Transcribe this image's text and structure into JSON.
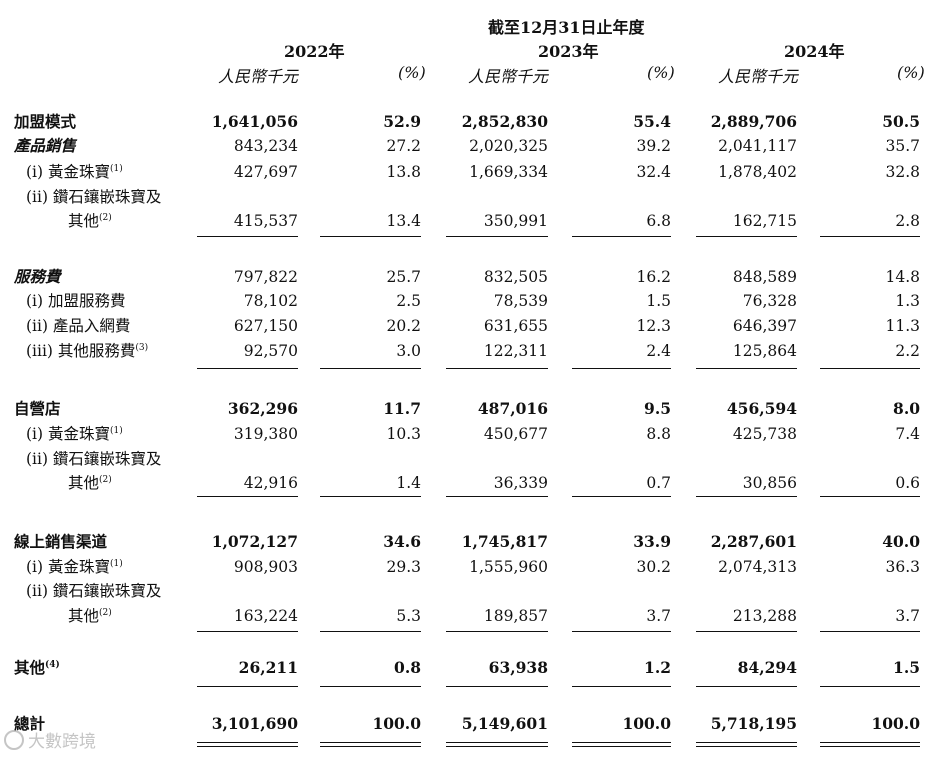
{
  "header": {
    "period": "截至12月31日止年度",
    "years": [
      "2022年",
      "2023年",
      "2024年"
    ],
    "unit_label": "人民幣千元",
    "pct_label": "(%)"
  },
  "rows": [
    {
      "label": "加盟模式",
      "bold": true,
      "italic": false,
      "sup": "",
      "vals": [
        "1,641,056",
        "52.9",
        "2,852,830",
        "55.4",
        "2,889,706",
        "50.5"
      ]
    },
    {
      "label": "產品銷售",
      "bold": true,
      "italic": true,
      "sup": "",
      "vals": [
        "843,234",
        "27.2",
        "2,020,325",
        "39.2",
        "2,041,117",
        "35.7"
      ]
    },
    {
      "label": "(i) 黃金珠寶",
      "bold": false,
      "italic": false,
      "sup": "(1)",
      "vals": [
        "427,697",
        "13.8",
        "1,669,334",
        "32.4",
        "1,878,402",
        "32.8"
      ]
    },
    {
      "label": "(ii) 鑽石鑲嵌珠寶及",
      "bold": false,
      "italic": false,
      "sup": "",
      "vals": [
        "",
        "",
        "",
        "",
        "",
        ""
      ]
    },
    {
      "label": "其他",
      "bold": false,
      "italic": false,
      "sup": "(2)",
      "vals": [
        "415,537",
        "13.4",
        "350,991",
        "6.8",
        "162,715",
        "2.8"
      ]
    },
    {
      "label": "服務費",
      "bold": true,
      "italic": true,
      "sup": "",
      "vals": [
        "797,822",
        "25.7",
        "832,505",
        "16.2",
        "848,589",
        "14.8"
      ]
    },
    {
      "label": "(i) 加盟服務費",
      "bold": false,
      "italic": false,
      "sup": "",
      "vals": [
        "78,102",
        "2.5",
        "78,539",
        "1.5",
        "76,328",
        "1.3"
      ]
    },
    {
      "label": "(ii) 產品入網費",
      "bold": false,
      "italic": false,
      "sup": "",
      "vals": [
        "627,150",
        "20.2",
        "631,655",
        "12.3",
        "646,397",
        "11.3"
      ]
    },
    {
      "label": "(iii) 其他服務費",
      "bold": false,
      "italic": false,
      "sup": "(3)",
      "vals": [
        "92,570",
        "3.0",
        "122,311",
        "2.4",
        "125,864",
        "2.2"
      ]
    },
    {
      "label": "自營店",
      "bold": true,
      "italic": false,
      "sup": "",
      "vals": [
        "362,296",
        "11.7",
        "487,016",
        "9.5",
        "456,594",
        "8.0"
      ]
    },
    {
      "label": "(i) 黃金珠寶",
      "bold": false,
      "italic": false,
      "sup": "(1)",
      "vals": [
        "319,380",
        "10.3",
        "450,677",
        "8.8",
        "425,738",
        "7.4"
      ]
    },
    {
      "label": "(ii) 鑽石鑲嵌珠寶及",
      "bold": false,
      "italic": false,
      "sup": "",
      "vals": [
        "",
        "",
        "",
        "",
        "",
        ""
      ]
    },
    {
      "label": "其他",
      "bold": false,
      "italic": false,
      "sup": "(2)",
      "vals": [
        "42,916",
        "1.4",
        "36,339",
        "0.7",
        "30,856",
        "0.6"
      ]
    },
    {
      "label": "線上銷售渠道",
      "bold": true,
      "italic": false,
      "sup": "",
      "vals": [
        "1,072,127",
        "34.6",
        "1,745,817",
        "33.9",
        "2,287,601",
        "40.0"
      ]
    },
    {
      "label": "(i) 黃金珠寶",
      "bold": false,
      "italic": false,
      "sup": "(1)",
      "vals": [
        "908,903",
        "29.3",
        "1,555,960",
        "30.2",
        "2,074,313",
        "36.3"
      ]
    },
    {
      "label": "(ii) 鑽石鑲嵌珠寶及",
      "bold": false,
      "italic": false,
      "sup": "",
      "vals": [
        "",
        "",
        "",
        "",
        "",
        ""
      ]
    },
    {
      "label": "其他",
      "bold": false,
      "italic": false,
      "sup": "(2)",
      "vals": [
        "163,224",
        "5.3",
        "189,857",
        "3.7",
        "213,288",
        "3.7"
      ]
    },
    {
      "label": "其他",
      "bold": true,
      "italic": false,
      "sup": "(4)",
      "vals": [
        "26,211",
        "0.8",
        "63,938",
        "1.2",
        "84,294",
        "1.5"
      ]
    },
    {
      "label": "總計",
      "bold": true,
      "italic": false,
      "sup": "",
      "vals": [
        "3,101,690",
        "100.0",
        "5,149,601",
        "100.0",
        "5,718,195",
        "100.0"
      ]
    }
  ],
  "watermark": "大數跨境"
}
